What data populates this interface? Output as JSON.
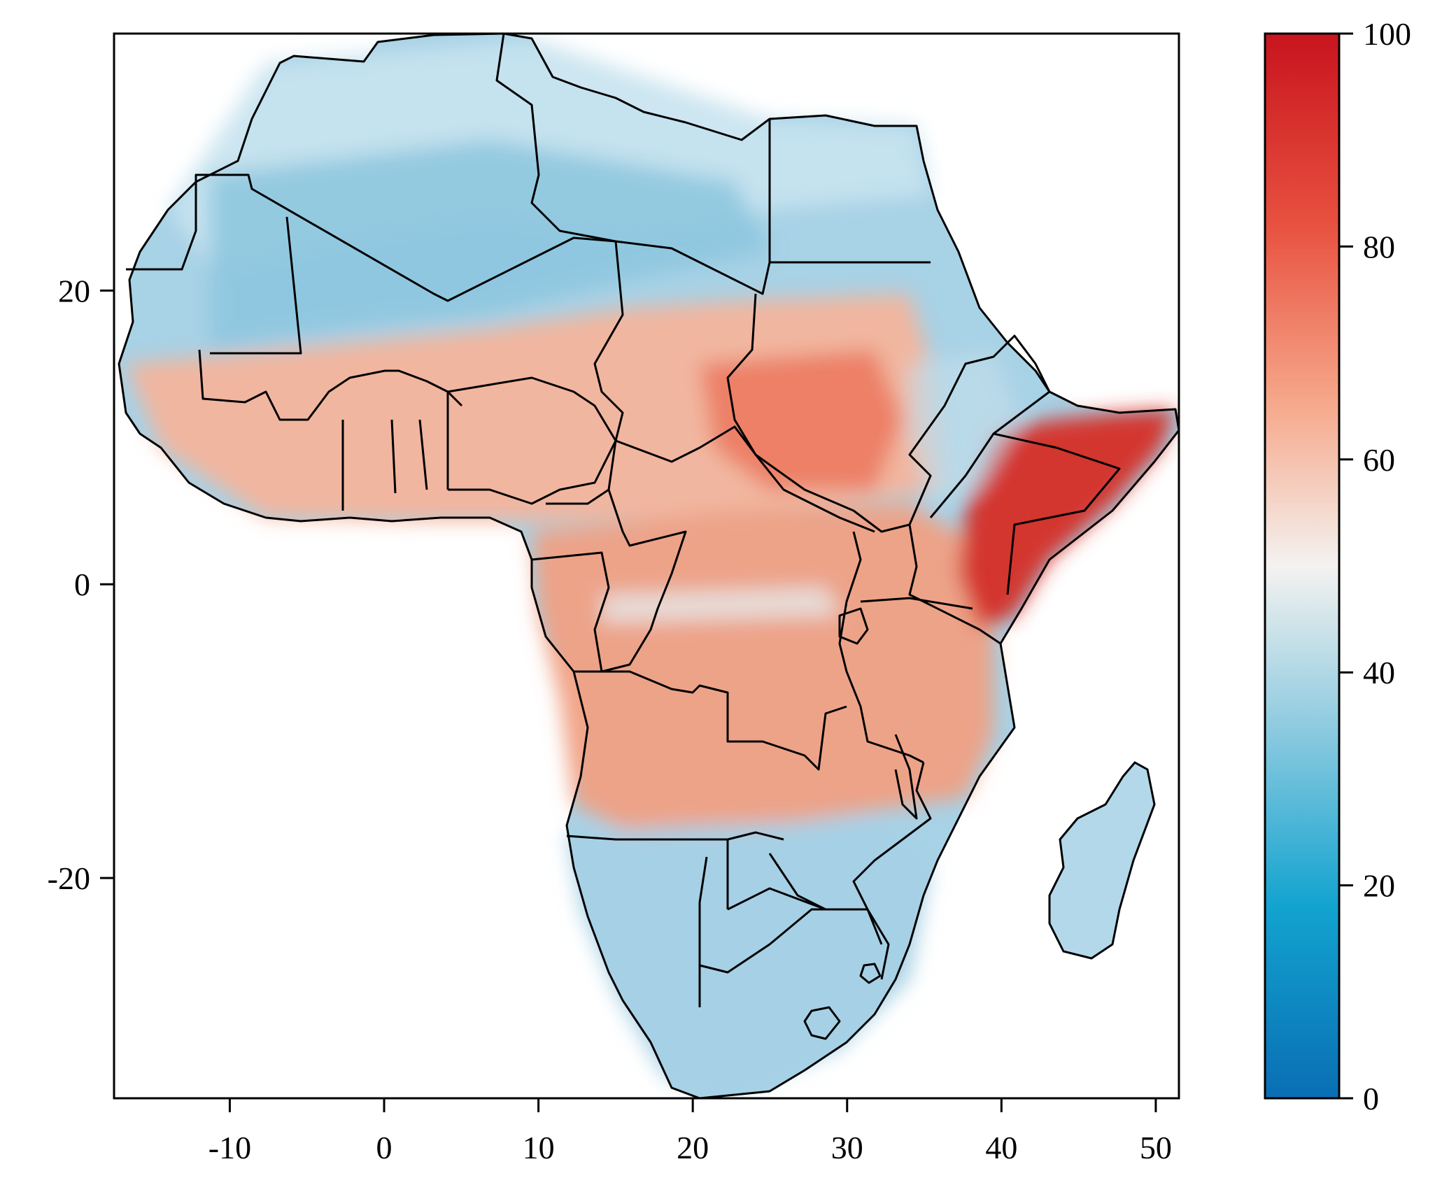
{
  "map": {
    "region": "Africa",
    "x_axis": {
      "ticks": [
        -10,
        0,
        10,
        20,
        30,
        40,
        50
      ],
      "labels": [
        "-10",
        "0",
        "10",
        "20",
        "30",
        "40",
        "50"
      ],
      "range": [
        -17.5,
        51.5
      ]
    },
    "y_axis": {
      "ticks": [
        20,
        0,
        -20
      ],
      "labels": [
        "20",
        "0",
        "-20"
      ],
      "range": [
        -35,
        37.5
      ]
    },
    "colorbar": {
      "range": [
        0,
        100
      ],
      "ticks": [
        100,
        80,
        60,
        40,
        20,
        0
      ],
      "labels": [
        "100",
        "80",
        "60",
        "40",
        "20",
        "0"
      ],
      "colors": [
        "#0a6eb4",
        "#12a3cf",
        "#8fcbe0",
        "#f4f2f0",
        "#f6a98c",
        "#e8513f",
        "#c8141e"
      ]
    },
    "region_colors": {
      "sahara": "#9dcde2",
      "north_coast": "#c2e1ee",
      "sahel": "#f6b8a0",
      "east_horn": "#d6362f",
      "central": "#f09a82",
      "southern": "#a8d2e6",
      "madagascar": "#b2d8ea",
      "ocean": "#ffffff"
    }
  }
}
